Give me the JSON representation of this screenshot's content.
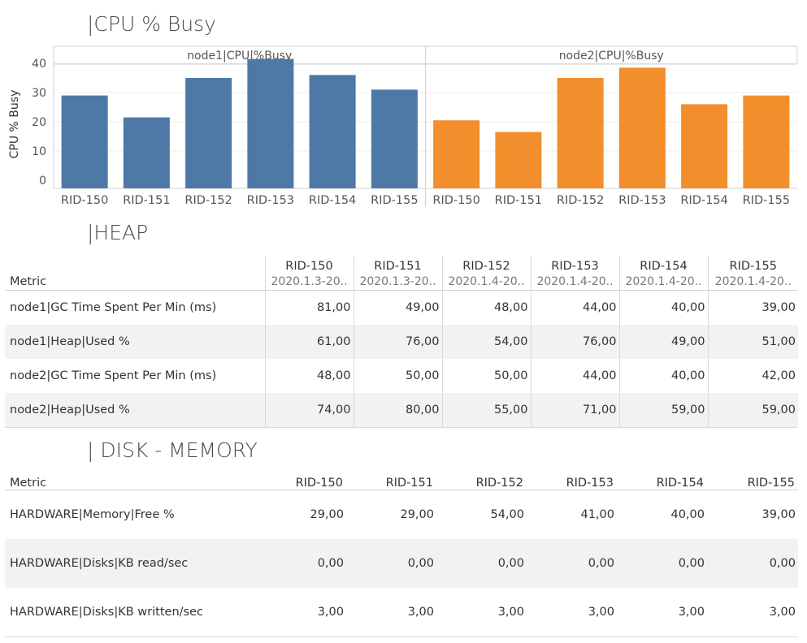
{
  "cpu_title": "|CPU % Busy",
  "heap_title": "|HEAP",
  "disk_title": "| DISK - MEMORY",
  "colors": {
    "node1": "#4e79a7",
    "node2": "#f28e2b"
  },
  "chart_data": {
    "type": "bar",
    "title": "|CPU % Busy",
    "ylabel": "CPU % Busy",
    "yticks": [
      0,
      10,
      20,
      30,
      40
    ],
    "ylim": [
      0,
      42
    ],
    "grid": true,
    "categories": [
      "RID-150",
      "RID-151",
      "RID-152",
      "RID-153",
      "RID-154",
      "RID-155"
    ],
    "series": [
      {
        "name": "node1|CPU|%Busy",
        "color": "#4e79a7",
        "values": [
          29,
          21.5,
          35,
          41.5,
          36,
          31
        ]
      },
      {
        "name": "node2|CPU|%Busy",
        "color": "#f28e2b",
        "values": [
          20.5,
          16.5,
          35,
          38.5,
          26,
          29
        ]
      }
    ]
  },
  "heap": {
    "metric_header": "Metric",
    "columns": [
      {
        "rid": "RID-150",
        "date": "2020.1.3-20.."
      },
      {
        "rid": "RID-151",
        "date": "2020.1.3-20.."
      },
      {
        "rid": "RID-152",
        "date": "2020.1.4-20.."
      },
      {
        "rid": "RID-153",
        "date": "2020.1.4-20.."
      },
      {
        "rid": "RID-154",
        "date": "2020.1.4-20.."
      },
      {
        "rid": "RID-155",
        "date": "2020.1.4-20.."
      }
    ],
    "rows": [
      {
        "metric": "node1|GC Time Spent Per Min (ms)",
        "values": [
          "81,00",
          "49,00",
          "48,00",
          "44,00",
          "40,00",
          "39,00"
        ]
      },
      {
        "metric": "node1|Heap|Used %",
        "values": [
          "61,00",
          "76,00",
          "54,00",
          "76,00",
          "49,00",
          "51,00"
        ]
      },
      {
        "metric": "node2|GC Time Spent Per Min (ms)",
        "values": [
          "48,00",
          "50,00",
          "50,00",
          "44,00",
          "40,00",
          "42,00"
        ]
      },
      {
        "metric": "node2|Heap|Used %",
        "values": [
          "74,00",
          "80,00",
          "55,00",
          "71,00",
          "59,00",
          "59,00"
        ]
      }
    ]
  },
  "disk": {
    "metric_header": "Metric",
    "columns": [
      "RID-150",
      "RID-151",
      "RID-152",
      "RID-153",
      "RID-154",
      "RID-155"
    ],
    "rows": [
      {
        "metric": "HARDWARE|Memory|Free %",
        "values": [
          "29,00",
          "29,00",
          "54,00",
          "41,00",
          "40,00",
          "39,00"
        ]
      },
      {
        "metric": "HARDWARE|Disks|KB read/sec",
        "values": [
          "0,00",
          "0,00",
          "0,00",
          "0,00",
          "0,00",
          "0,00"
        ]
      },
      {
        "metric": "HARDWARE|Disks|KB written/sec",
        "values": [
          "3,00",
          "3,00",
          "3,00",
          "3,00",
          "3,00",
          "3,00"
        ]
      }
    ]
  }
}
